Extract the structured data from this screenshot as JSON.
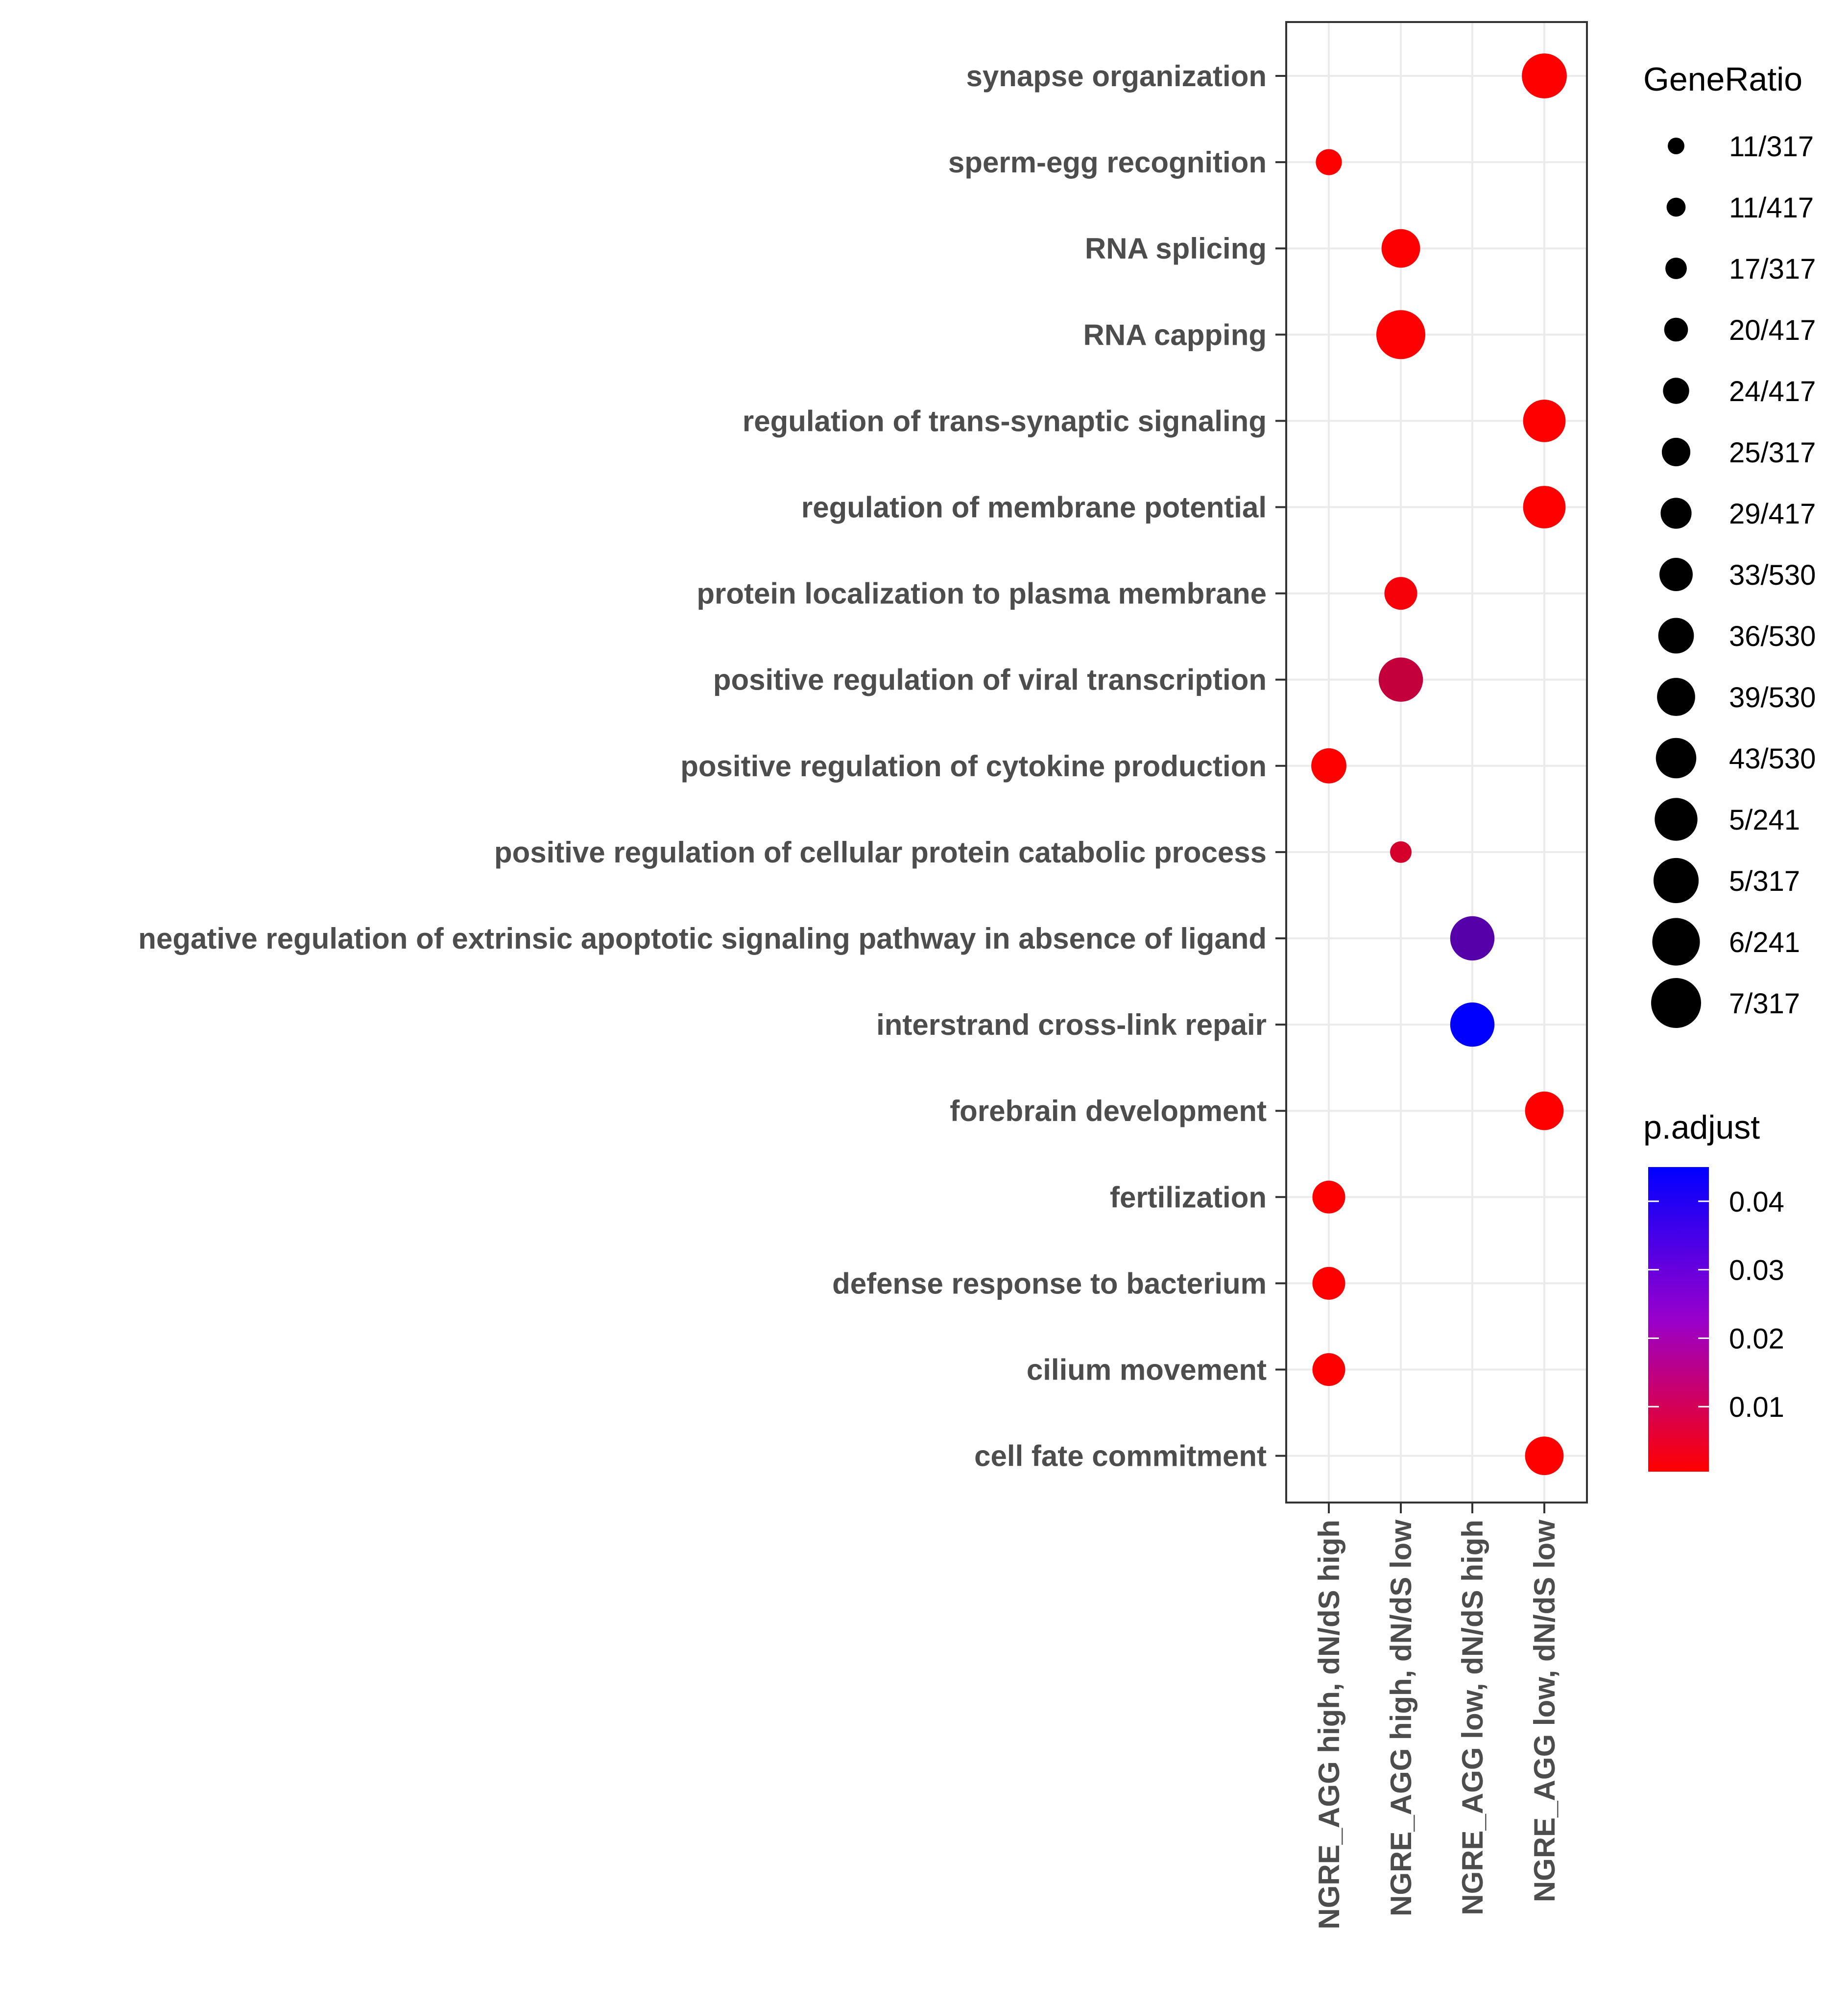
{
  "chart_data": {
    "type": "scatter",
    "x_categories": [
      "NGRE_AGG high, dN/dS high",
      "NGRE_AGG high, dN/dS low",
      "NGRE_AGG low, dN/dS  high",
      "NGRE_AGG low, dN/dS  low"
    ],
    "y_categories": [
      "synapse organization",
      "sperm-egg recognition",
      "RNA splicing",
      "RNA capping",
      "regulation of trans-synaptic signaling",
      "regulation of membrane potential",
      "protein localization to plasma membrane",
      "positive regulation of viral transcription",
      "positive regulation of cytokine production",
      "positive regulation of cellular protein catabolic process",
      "negative regulation of extrinsic apoptotic signaling pathway in absence of ligand",
      "interstrand cross-link repair",
      "forebrain development",
      "fertilization",
      "defense response to bacterium",
      "cilium movement",
      "cell fate commitment"
    ],
    "points": [
      {
        "term": "synapse organization",
        "group": "NGRE_AGG low, dN/dS  low",
        "gene_ratio": 0.0811,
        "p_adjust": 0.0005
      },
      {
        "term": "sperm-egg recognition",
        "group": "NGRE_AGG high, dN/dS high",
        "gene_ratio": 0.034,
        "p_adjust": 0.0005
      },
      {
        "term": "RNA splicing",
        "group": "NGRE_AGG high, dN/dS low",
        "gene_ratio": 0.0623,
        "p_adjust": 0.0008
      },
      {
        "term": "RNA capping",
        "group": "NGRE_AGG high, dN/dS low",
        "gene_ratio": 0.0943,
        "p_adjust": 0.0006
      },
      {
        "term": "regulation of trans-synaptic signaling",
        "group": "NGRE_AGG low, dN/dS  low",
        "gene_ratio": 0.0736,
        "p_adjust": 0.0005
      },
      {
        "term": "regulation of membrane potential",
        "group": "NGRE_AGG low, dN/dS  low",
        "gene_ratio": 0.0736,
        "p_adjust": 0.0005
      },
      {
        "term": "protein localization to plasma membrane",
        "group": "NGRE_AGG high, dN/dS low",
        "gene_ratio": 0.048,
        "p_adjust": 0.002
      },
      {
        "term": "positive regulation of viral transcription",
        "group": "NGRE_AGG high, dN/dS low",
        "gene_ratio": 0.0789,
        "p_adjust": 0.011
      },
      {
        "term": "positive regulation of cytokine production",
        "group": "NGRE_AGG high, dN/dS high",
        "gene_ratio": 0.0536,
        "p_adjust": 0.0005
      },
      {
        "term": "positive regulation of cellular protein catabolic process",
        "group": "NGRE_AGG high, dN/dS low",
        "gene_ratio": 0.0264,
        "p_adjust": 0.008
      },
      {
        "term": "negative regulation of extrinsic apoptotic signaling pathway in absence of ligand",
        "group": "NGRE_AGG low, dN/dS  high",
        "gene_ratio": 0.0789,
        "p_adjust": 0.03
      },
      {
        "term": "interstrand cross-link repair",
        "group": "NGRE_AGG low, dN/dS  high",
        "gene_ratio": 0.0789,
        "p_adjust": 0.045
      },
      {
        "term": "forebrain development",
        "group": "NGRE_AGG low, dN/dS  low",
        "gene_ratio": 0.0623,
        "p_adjust": 0.0005
      },
      {
        "term": "fertilization",
        "group": "NGRE_AGG high, dN/dS high",
        "gene_ratio": 0.048,
        "p_adjust": 0.0005
      },
      {
        "term": "defense response to bacterium",
        "group": "NGRE_AGG high, dN/dS high",
        "gene_ratio": 0.048,
        "p_adjust": 0.0005
      },
      {
        "term": "cilium movement",
        "group": "NGRE_AGG high, dN/dS high",
        "gene_ratio": 0.048,
        "p_adjust": 0.0005
      },
      {
        "term": "cell fate commitment",
        "group": "NGRE_AGG low, dN/dS  low",
        "gene_ratio": 0.0623,
        "p_adjust": 0.0005
      }
    ],
    "size_legend": {
      "title": "GeneRatio",
      "entries": [
        "11/317",
        "11/417",
        "17/317",
        "20/417",
        "24/417",
        "25/317",
        "29/417",
        "33/530",
        "36/530",
        "39/530",
        "43/530",
        "5/241",
        "5/317",
        "6/241",
        "7/317"
      ]
    },
    "color_legend": {
      "title": "p.adjust",
      "ticks": [
        0.04,
        0.03,
        0.02,
        0.01
      ],
      "tick_labels": [
        "0.04",
        "0.03",
        "0.02",
        "0.01"
      ],
      "range": [
        0.0005,
        0.045
      ],
      "low_color": "#ff0000",
      "high_color": "#0000ff"
    },
    "grid": true,
    "legend_position": "right"
  }
}
